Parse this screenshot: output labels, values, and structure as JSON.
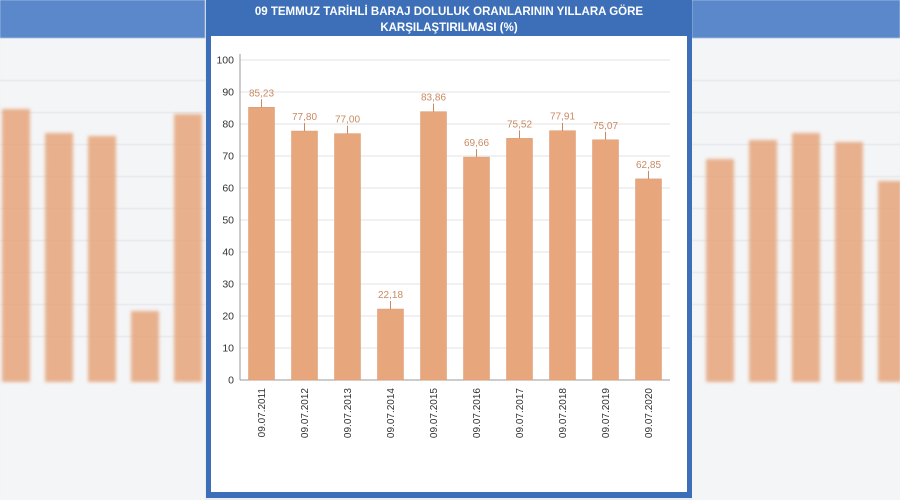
{
  "chart_data": {
    "type": "bar",
    "title_line1": "09 TEMMUZ TARİHLİ BARAJ DOLULUK ORANLARININ YILLARA GÖRE",
    "title_line2": "KARŞILAŞTIRILMASI (%)",
    "categories": [
      "09.07.2011",
      "09.07.2012",
      "09.07.2013",
      "09.07.2014",
      "09.07.2015",
      "09.07.2016",
      "09.07.2017",
      "09.07.2018",
      "09.07.2019",
      "09.07.2020"
    ],
    "values": [
      85.23,
      77.8,
      77.0,
      22.18,
      83.86,
      69.66,
      75.52,
      77.91,
      75.07,
      62.85
    ],
    "value_labels": [
      "85,23",
      "77,80",
      "77,00",
      "22,18",
      "83,86",
      "69,66",
      "75,52",
      "77,91",
      "75,07",
      "62,85"
    ],
    "ylim": [
      0,
      100
    ],
    "yticks": [
      0,
      10,
      20,
      30,
      40,
      50,
      60,
      70,
      80,
      90,
      100
    ],
    "xlabel": "",
    "ylabel": "",
    "grid": true,
    "colors": {
      "bar": "#e8a67d",
      "bar_stroke": "#d99a70",
      "label": "#c98a62",
      "header": "#3d6fb8",
      "grid": "#e3e3e3"
    }
  }
}
